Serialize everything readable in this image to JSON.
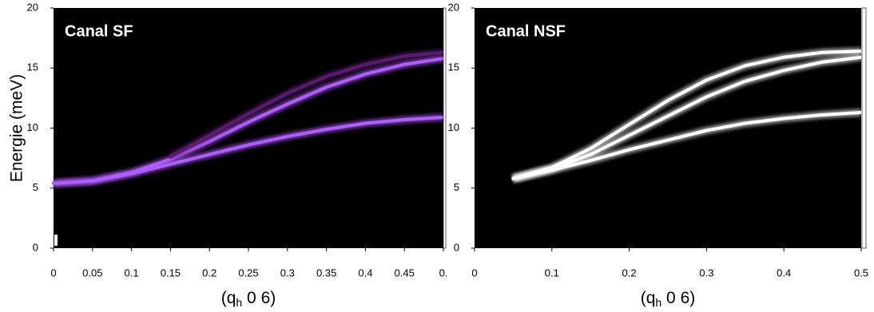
{
  "chart_data": [
    {
      "type": "line",
      "title": "Canal SF",
      "ylabel": "Energie (meV)",
      "xlabel": {
        "prefix": "(q",
        "sub": "h",
        "suffix": " 0 6)"
      },
      "x": [
        0,
        0.05,
        0.1,
        0.15,
        0.2,
        0.25,
        0.3,
        0.35,
        0.4,
        0.45,
        0.5
      ],
      "series": [
        {
          "color": "#b15cff",
          "values": [
            5.4,
            5.6,
            6.2,
            7.0,
            7.8,
            8.6,
            9.3,
            9.9,
            10.4,
            10.7,
            10.9
          ]
        },
        {
          "color": "#b15cff",
          "values": [
            5.4,
            5.6,
            6.3,
            7.4,
            8.9,
            10.5,
            12.0,
            13.4,
            14.5,
            15.3,
            15.8
          ]
        },
        {
          "color": "#5a1a6e",
          "values": [
            null,
            null,
            null,
            7.6,
            9.4,
            11.2,
            12.9,
            14.3,
            15.3,
            16.0,
            16.3
          ]
        }
      ],
      "xlim": [
        0,
        0.5
      ],
      "ylim": [
        0,
        20
      ],
      "xticks": [
        0,
        0.05,
        0.1,
        0.15,
        0.2,
        0.25,
        0.3,
        0.35,
        0.4,
        0.45,
        {
          "value": 0.5,
          "label": "0."
        }
      ],
      "yticks": [
        0,
        5,
        10,
        15,
        20
      ]
    },
    {
      "type": "line",
      "title": "Canal NSF",
      "xlabel": {
        "prefix": "(q",
        "sub": "h",
        "suffix": " 0 6)"
      },
      "x": [
        0,
        0.05,
        0.1,
        0.15,
        0.2,
        0.25,
        0.3,
        0.35,
        0.4,
        0.45,
        0.5
      ],
      "series": [
        {
          "color": "#ffffff",
          "values": [
            null,
            5.8,
            6.5,
            7.3,
            8.2,
            9.0,
            9.8,
            10.4,
            10.8,
            11.1,
            11.3
          ]
        },
        {
          "color": "#ffffff",
          "values": [
            null,
            5.8,
            6.6,
            7.8,
            9.4,
            11.0,
            12.6,
            13.9,
            14.8,
            15.5,
            15.9
          ]
        },
        {
          "color": "#ffffff",
          "values": [
            null,
            5.8,
            6.7,
            8.3,
            10.3,
            12.3,
            14.0,
            15.2,
            15.9,
            16.3,
            16.4
          ]
        }
      ],
      "xlim": [
        0,
        0.5
      ],
      "ylim": [
        0,
        20
      ],
      "xticks": [
        0,
        0.1,
        0.2,
        0.3,
        0.4,
        0.5
      ],
      "yticks": [
        0,
        5,
        10,
        15,
        20
      ]
    }
  ]
}
